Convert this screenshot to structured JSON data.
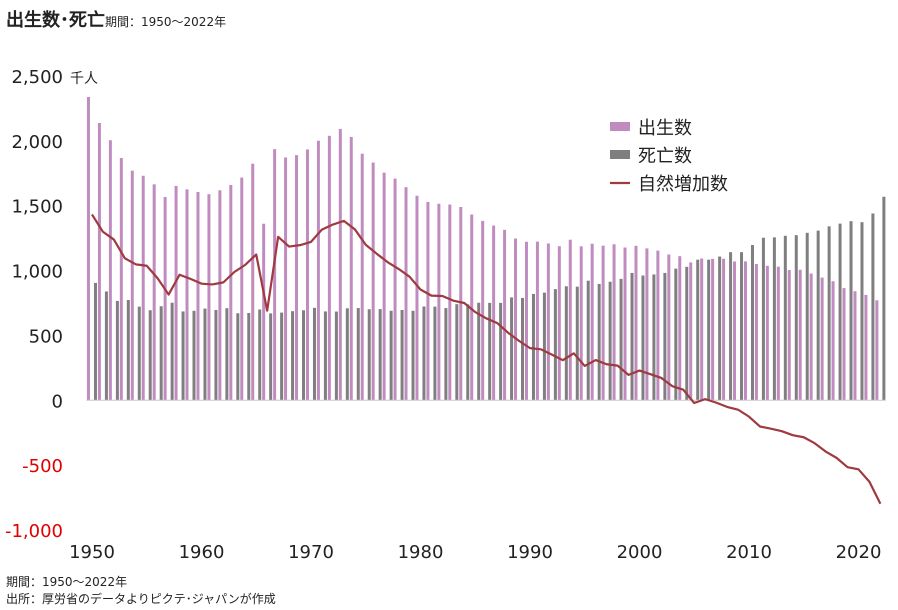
{
  "title": "出生数･死亡",
  "subtitle": "期間：1950～2022年",
  "footer": {
    "period": "期間：1950～2022年",
    "source": "出所：厚労省のデータよりピクテ･ジャパンが作成"
  },
  "chart_data": {
    "type": "bar",
    "unit": "千人",
    "x": [
      1950,
      1951,
      1952,
      1953,
      1954,
      1955,
      1956,
      1957,
      1958,
      1959,
      1960,
      1961,
      1962,
      1963,
      1964,
      1965,
      1966,
      1967,
      1968,
      1969,
      1970,
      1971,
      1972,
      1973,
      1974,
      1975,
      1976,
      1977,
      1978,
      1979,
      1980,
      1981,
      1982,
      1983,
      1984,
      1985,
      1986,
      1987,
      1988,
      1989,
      1990,
      1991,
      1992,
      1993,
      1994,
      1995,
      1996,
      1997,
      1998,
      1999,
      2000,
      2001,
      2002,
      2003,
      2004,
      2005,
      2006,
      2007,
      2008,
      2009,
      2010,
      2011,
      2012,
      2013,
      2014,
      2015,
      2016,
      2017,
      2018,
      2019,
      2020,
      2021,
      2022
    ],
    "x_ticks": [
      "1950",
      "1960",
      "1970",
      "1980",
      "1990",
      "2000",
      "2010",
      "2020"
    ],
    "ylim": [
      -1000,
      2500
    ],
    "y_ticks": [
      "2,500",
      "2,000",
      "1,500",
      "1,000",
      "500",
      "0",
      "-500",
      "-1,000"
    ],
    "negative_tick_color": "#e00000",
    "legend_position": "top-right",
    "series": [
      {
        "name": "出生数",
        "kind": "bar",
        "color": "#c08cc0",
        "values": [
          2338,
          2138,
          2005,
          1868,
          1770,
          1731,
          1665,
          1567,
          1653,
          1626,
          1606,
          1589,
          1619,
          1660,
          1717,
          1824,
          1361,
          1936,
          1872,
          1890,
          1934,
          2001,
          2039,
          2092,
          2030,
          1901,
          1833,
          1755,
          1709,
          1643,
          1577,
          1529,
          1515,
          1509,
          1490,
          1432,
          1383,
          1347,
          1314,
          1247,
          1222,
          1223,
          1209,
          1188,
          1238,
          1187,
          1207,
          1192,
          1203,
          1178,
          1191,
          1171,
          1154,
          1124,
          1111,
          1063,
          1093,
          1090,
          1091,
          1070,
          1071,
          1051,
          1037,
          1030,
          1004,
          1006,
          977,
          946,
          918,
          865,
          841,
          812,
          771
        ]
      },
      {
        "name": "死亡数",
        "kind": "bar",
        "color": "#7f7f7f",
        "values": [
          905,
          839,
          766,
          773,
          722,
          694,
          725,
          752,
          685,
          690,
          707,
          696,
          710,
          671,
          673,
          700,
          670,
          676,
          687,
          694,
          713,
          685,
          684,
          709,
          711,
          702,
          703,
          690,
          696,
          690,
          723,
          722,
          711,
          741,
          740,
          752,
          751,
          751,
          793,
          789,
          820,
          830,
          857,
          879,
          876,
          922,
          897,
          914,
          936,
          982,
          962,
          970,
          982,
          1015,
          1029,
          1084,
          1084,
          1108,
          1142,
          1142,
          1197,
          1253,
          1256,
          1268,
          1273,
          1291,
          1308,
          1341,
          1362,
          1381,
          1373,
          1440,
          1569
        ]
      },
      {
        "name": "自然増加数",
        "kind": "line",
        "color": "#9e3a40",
        "values": [
          1433,
          1299,
          1239,
          1095,
          1048,
          1037,
          940,
          815,
          968,
          936,
          899,
          893,
          909,
          989,
          1044,
          1124,
          691,
          1260,
          1185,
          1196,
          1221,
          1316,
          1355,
          1383,
          1319,
          1199,
          1130,
          1065,
          1013,
          953,
          854,
          807,
          804,
          768,
          750,
          680,
          632,
          596,
          521,
          458,
          402,
          393,
          352,
          309,
          362,
          265,
          310,
          278,
          267,
          196,
          229,
          201,
          172,
          109,
          82,
          -21,
          9,
          -18,
          -51,
          -72,
          -126,
          -202,
          -219,
          -238,
          -269,
          -285,
          -331,
          -395,
          -444,
          -516,
          -532,
          -628,
          -798
        ]
      }
    ]
  }
}
